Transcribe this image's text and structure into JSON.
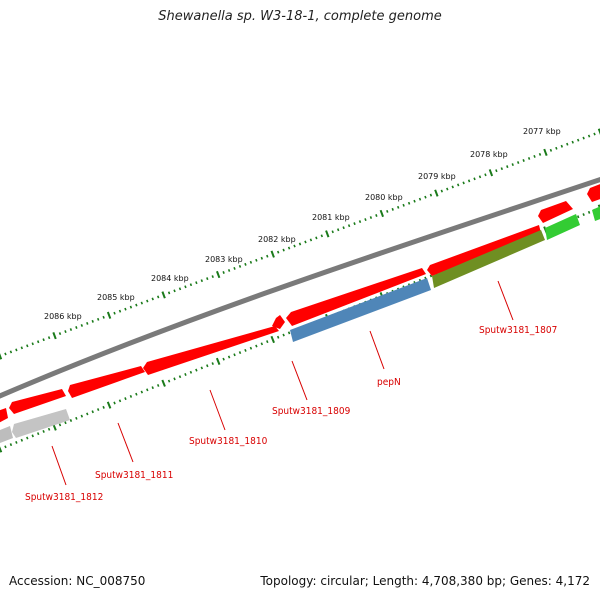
{
  "title": "Shewanella sp. W3-18-1, complete genome",
  "footer": {
    "accession": "Accession: NC_008750",
    "summary": "Topology: circular; Length: 4,708,380 bp; Genes: 4,172"
  },
  "colors": {
    "backbone": "#7a7a7a",
    "tick": "#1a7a1a",
    "forward_gene": "#ff0000",
    "label": "#d80000",
    "pepN": "#4f86b8",
    "gene_1807": "#6f8f22",
    "gene_1806": "#33cc33",
    "gene_1812": "#bdbdbd"
  },
  "scale_labels": [
    "2077 kbp",
    "2078 kbp",
    "2079 kbp",
    "2080 kbp",
    "2081 kbp",
    "2082 kbp",
    "2083 kbp",
    "2084 kbp",
    "2085 kbp",
    "2086 kbp"
  ],
  "gene_labels": [
    "Sputw3181_1807",
    "pepN",
    "Sputw3181_1809",
    "Sputw3181_1810",
    "Sputw3181_1811",
    "Sputw3181_1812"
  ]
}
